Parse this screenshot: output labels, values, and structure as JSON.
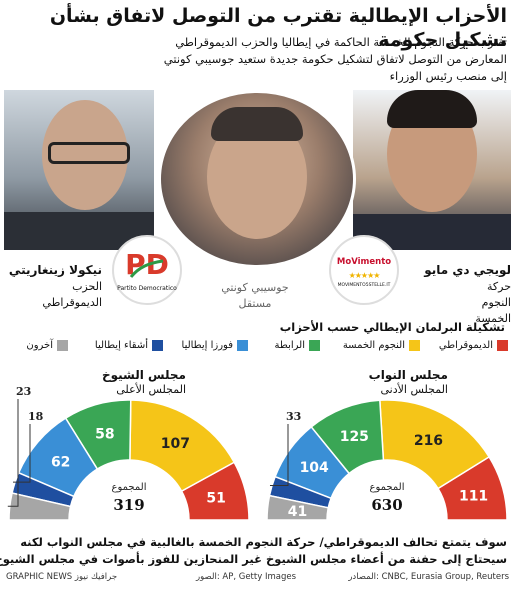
{
  "title": "الأحزاب الإيطالية تقترب من التوصل لاتفاق بشأن تشكيل حكومة",
  "subtitle": [
    "تقترب حركة النجوم الخمسة الحاكمة في إيطاليا والحزب الديموقراطي",
    "المعارض من التوصل لاتفاق لتشكيل حكومة جديدة ستعيد جوسيبي كونتي",
    "إلى منصب رئيس الوزراء"
  ],
  "people": {
    "left": {
      "name": "نيكولا زينغاريتي",
      "party": [
        "الحزب",
        "الديموقراطي"
      ]
    },
    "center": {
      "name": "جوسيبي كونتي",
      "party": "مستقل"
    },
    "right": {
      "name": "لويجي دي مايو",
      "party": [
        "حركة",
        "النجوم",
        "الخمسة"
      ]
    }
  },
  "logos": {
    "pd": {
      "mark": "PD",
      "text": "Partito Democratico"
    },
    "m5s": {
      "mark": "MoVimento",
      "stars": "★★★★★",
      "url": "MOVIMENTO5STELLE.IT"
    }
  },
  "composition_title": "تشكيلة البرلمان الإيطالي حسب الأحزاب",
  "legend": [
    {
      "label": "الديموقراطي",
      "color": "#d93a2b"
    },
    {
      "label": "النجوم الخمسة",
      "color": "#f5c518"
    },
    {
      "label": "الرابطة",
      "color": "#3aa655"
    },
    {
      "label": "فورزا إيطاليا",
      "color": "#3a8fd6"
    },
    {
      "label": "أشقاء إيطاليا",
      "color": "#1f4fa0"
    },
    {
      "label": "آخرون",
      "color": "#a6a6a6"
    }
  ],
  "chart_data": [
    {
      "type": "pie",
      "title": "مجلس الشيوخ",
      "subtitle": "المجلس الأعلى",
      "total_label": "المجموع",
      "total": 319,
      "categories": [
        "الديموقراطي",
        "النجوم الخمسة",
        "الرابطة",
        "فورزا إيطاليا",
        "أشقاء إيطاليا",
        "آخرون"
      ],
      "values": [
        51,
        107,
        58,
        62,
        18,
        23
      ]
    },
    {
      "type": "pie",
      "title": "مجلس النواب",
      "subtitle": "المجلس الأدنى",
      "total_label": "المجموع",
      "total": 630,
      "categories": [
        "الديموقراطي",
        "النجوم الخمسة",
        "الرابطة",
        "فورزا إيطاليا",
        "أشقاء إيطاليا",
        "آخرون"
      ],
      "values": [
        111,
        216,
        125,
        104,
        33,
        41
      ]
    }
  ],
  "note": [
    "سوف يتمتع تحالف الديموقراطي/ حركة النجوم الخمسة بالغالبية في مجلس النواب لكنه",
    "سيحتاج إلى حفنة من أعضاء مجلس الشيوخ غير المنحازين للفوز بأصوات في مجلس الشيوخ"
  ],
  "footer": {
    "sources": "المصادر: CNBC, Eurasia Group, Reuters",
    "photos": "الصور: AP, Getty Images",
    "credit": "GRAPHIC NEWS جرافيك نيوز"
  }
}
